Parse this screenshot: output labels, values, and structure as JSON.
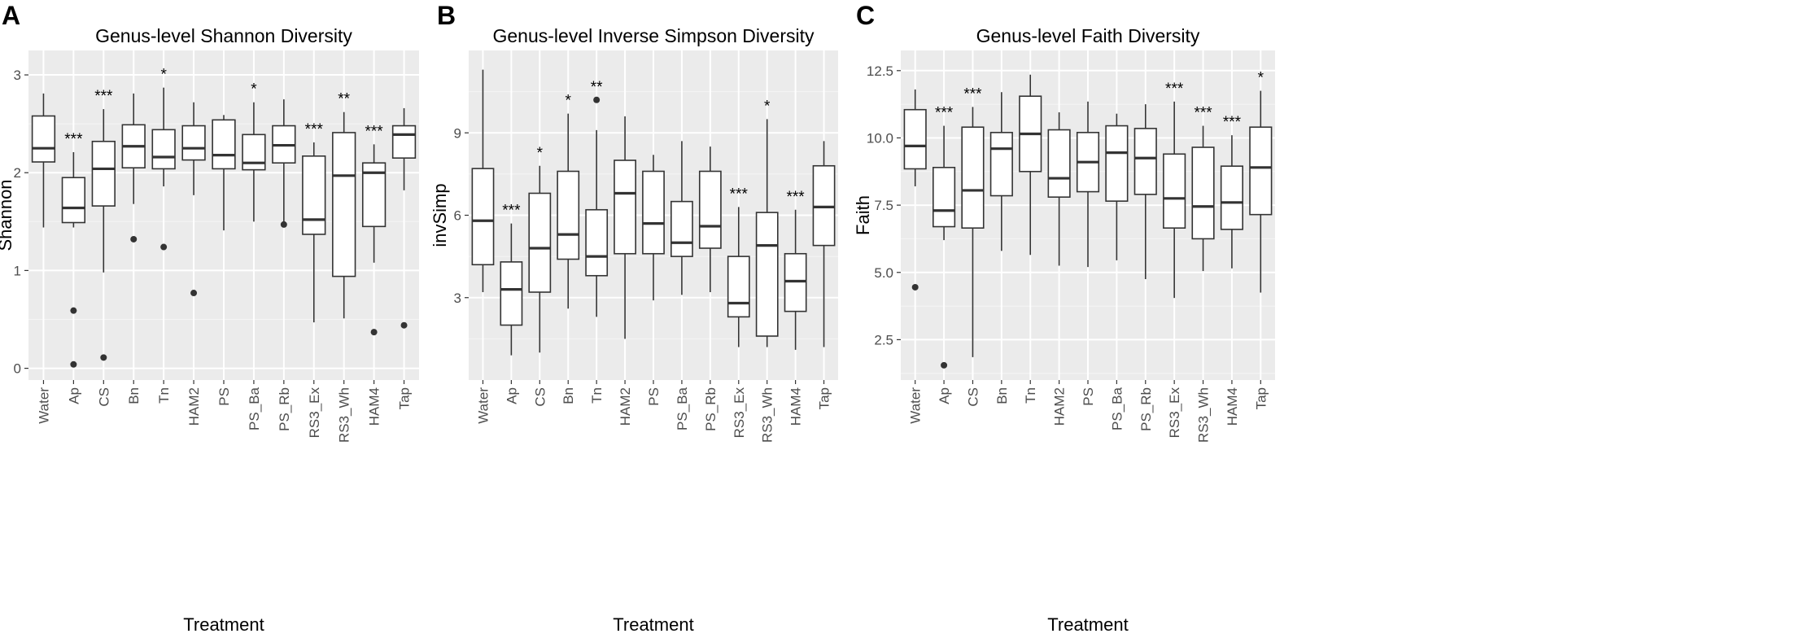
{
  "chart_data": [
    {
      "type": "boxplot",
      "panel_label": "A",
      "title": "Genus-level Shannon Diversity",
      "xlabel": "Treatment",
      "ylabel": "Shannon",
      "ylim": [
        -0.12,
        3.25
      ],
      "yticks": [
        0,
        1,
        2,
        3
      ],
      "ytick_labels": [
        "0",
        "1",
        "2",
        "3"
      ],
      "grid": true,
      "categories": [
        "Water",
        "Ap",
        "CS",
        "Bn",
        "Tn",
        "HAM2",
        "PS",
        "PS_Ba",
        "PS_Rb",
        "RS3_Ex",
        "RS3_Wh",
        "HAM4",
        "Tap"
      ],
      "boxes": [
        {
          "min": 1.44,
          "q1": 2.11,
          "median": 2.25,
          "q3": 2.58,
          "max": 2.81,
          "outliers": [],
          "sig": ""
        },
        {
          "min": 1.44,
          "q1": 1.49,
          "median": 1.64,
          "q3": 1.95,
          "max": 2.21,
          "outliers": [
            0.59,
            0.04
          ],
          "sig": "***"
        },
        {
          "min": 0.98,
          "q1": 1.66,
          "median": 2.04,
          "q3": 2.32,
          "max": 2.65,
          "outliers": [
            0.11
          ],
          "sig": "***"
        },
        {
          "min": 1.68,
          "q1": 2.05,
          "median": 2.27,
          "q3": 2.49,
          "max": 2.81,
          "outliers": [
            1.32
          ],
          "sig": ""
        },
        {
          "min": 1.86,
          "q1": 2.04,
          "median": 2.16,
          "q3": 2.44,
          "max": 2.87,
          "outliers": [
            1.24
          ],
          "sig": "*"
        },
        {
          "min": 1.77,
          "q1": 2.13,
          "median": 2.25,
          "q3": 2.48,
          "max": 2.72,
          "outliers": [
            0.77
          ],
          "sig": ""
        },
        {
          "min": 1.41,
          "q1": 2.04,
          "median": 2.18,
          "q3": 2.54,
          "max": 2.59,
          "outliers": [],
          "sig": ""
        },
        {
          "min": 1.5,
          "q1": 2.03,
          "median": 2.1,
          "q3": 2.39,
          "max": 2.72,
          "outliers": [],
          "sig": "*"
        },
        {
          "min": 1.48,
          "q1": 2.1,
          "median": 2.28,
          "q3": 2.48,
          "max": 2.75,
          "outliers": [
            1.47
          ],
          "sig": ""
        },
        {
          "min": 0.47,
          "q1": 1.37,
          "median": 1.52,
          "q3": 2.17,
          "max": 2.31,
          "outliers": [],
          "sig": "***"
        },
        {
          "min": 0.51,
          "q1": 0.94,
          "median": 1.97,
          "q3": 2.41,
          "max": 2.62,
          "outliers": [],
          "sig": "**"
        },
        {
          "min": 1.08,
          "q1": 1.45,
          "median": 2.0,
          "q3": 2.1,
          "max": 2.29,
          "outliers": [
            0.37
          ],
          "sig": "***"
        },
        {
          "min": 1.82,
          "q1": 2.15,
          "median": 2.39,
          "q3": 2.48,
          "max": 2.66,
          "outliers": [
            0.44
          ],
          "sig": ""
        }
      ]
    },
    {
      "type": "boxplot",
      "panel_label": "B",
      "title": "Genus-level Inverse Simpson Diversity",
      "xlabel": "Treatment",
      "ylabel": "invSimp",
      "ylim": [
        0.0,
        12.0
      ],
      "yticks": [
        3,
        6,
        9
      ],
      "ytick_labels": [
        "3",
        "6",
        "9"
      ],
      "grid": true,
      "categories": [
        "Water",
        "Ap",
        "CS",
        "Bn",
        "Tn",
        "HAM2",
        "PS",
        "PS_Ba",
        "PS_Rb",
        "RS3_Ex",
        "RS3_Wh",
        "HAM4",
        "Tap"
      ],
      "boxes": [
        {
          "min": 3.2,
          "q1": 4.2,
          "median": 5.8,
          "q3": 7.7,
          "max": 11.3,
          "outliers": [],
          "sig": ""
        },
        {
          "min": 0.9,
          "q1": 2.0,
          "median": 3.3,
          "q3": 4.3,
          "max": 5.7,
          "outliers": [],
          "sig": "***"
        },
        {
          "min": 1.0,
          "q1": 3.2,
          "median": 4.8,
          "q3": 6.8,
          "max": 7.8,
          "outliers": [],
          "sig": "*"
        },
        {
          "min": 2.6,
          "q1": 4.4,
          "median": 5.3,
          "q3": 7.6,
          "max": 9.7,
          "outliers": [],
          "sig": "*"
        },
        {
          "min": 2.3,
          "q1": 3.8,
          "median": 4.5,
          "q3": 6.2,
          "max": 9.1,
          "outliers": [
            10.2
          ],
          "sig": "**"
        },
        {
          "min": 1.5,
          "q1": 4.6,
          "median": 6.8,
          "q3": 8.0,
          "max": 9.6,
          "outliers": [],
          "sig": ""
        },
        {
          "min": 2.9,
          "q1": 4.6,
          "median": 5.7,
          "q3": 7.6,
          "max": 8.2,
          "outliers": [],
          "sig": ""
        },
        {
          "min": 3.1,
          "q1": 4.5,
          "median": 5.0,
          "q3": 6.5,
          "max": 8.7,
          "outliers": [],
          "sig": ""
        },
        {
          "min": 3.2,
          "q1": 4.8,
          "median": 5.6,
          "q3": 7.6,
          "max": 8.5,
          "outliers": [],
          "sig": ""
        },
        {
          "min": 1.2,
          "q1": 2.3,
          "median": 2.8,
          "q3": 4.5,
          "max": 6.3,
          "outliers": [],
          "sig": "***"
        },
        {
          "min": 1.2,
          "q1": 1.6,
          "median": 4.9,
          "q3": 6.1,
          "max": 9.5,
          "outliers": [],
          "sig": "*"
        },
        {
          "min": 1.1,
          "q1": 2.5,
          "median": 3.6,
          "q3": 4.6,
          "max": 6.2,
          "outliers": [],
          "sig": "***"
        },
        {
          "min": 1.2,
          "q1": 4.9,
          "median": 6.3,
          "q3": 7.8,
          "max": 8.7,
          "outliers": [],
          "sig": ""
        }
      ]
    },
    {
      "type": "boxplot",
      "panel_label": "C",
      "title": "Genus-level Faith Diversity",
      "xlabel": "Treatment",
      "ylabel": "Faith",
      "ylim": [
        1.0,
        13.25
      ],
      "yticks": [
        2.5,
        5.0,
        7.5,
        10.0,
        12.5
      ],
      "ytick_labels": [
        "2.5",
        "5.0",
        "7.5",
        "10.0",
        "12.5"
      ],
      "grid": true,
      "categories": [
        "Water",
        "Ap",
        "CS",
        "Bn",
        "Tn",
        "HAM2",
        "PS",
        "PS_Ba",
        "PS_Rb",
        "RS3_Ex",
        "RS3_Wh",
        "HAM4",
        "Tap"
      ],
      "boxes": [
        {
          "min": 8.2,
          "q1": 8.85,
          "median": 9.7,
          "q3": 11.05,
          "max": 11.8,
          "outliers": [
            4.45
          ],
          "sig": ""
        },
        {
          "min": 6.2,
          "q1": 6.7,
          "median": 7.3,
          "q3": 8.9,
          "max": 10.45,
          "outliers": [
            1.55
          ],
          "sig": "***"
        },
        {
          "min": 1.85,
          "q1": 6.65,
          "median": 8.05,
          "q3": 10.4,
          "max": 11.15,
          "outliers": [],
          "sig": "***"
        },
        {
          "min": 5.8,
          "q1": 7.85,
          "median": 9.6,
          "q3": 10.2,
          "max": 11.7,
          "outliers": [],
          "sig": ""
        },
        {
          "min": 5.65,
          "q1": 8.75,
          "median": 10.15,
          "q3": 11.55,
          "max": 12.35,
          "outliers": [],
          "sig": ""
        },
        {
          "min": 5.25,
          "q1": 7.8,
          "median": 8.5,
          "q3": 10.3,
          "max": 10.95,
          "outliers": [],
          "sig": ""
        },
        {
          "min": 5.2,
          "q1": 8.0,
          "median": 9.1,
          "q3": 10.2,
          "max": 11.35,
          "outliers": [],
          "sig": ""
        },
        {
          "min": 5.45,
          "q1": 7.65,
          "median": 9.45,
          "q3": 10.45,
          "max": 10.9,
          "outliers": [],
          "sig": ""
        },
        {
          "min": 4.75,
          "q1": 7.9,
          "median": 9.25,
          "q3": 10.35,
          "max": 11.25,
          "outliers": [],
          "sig": ""
        },
        {
          "min": 4.05,
          "q1": 6.65,
          "median": 7.75,
          "q3": 9.4,
          "max": 11.35,
          "outliers": [],
          "sig": "***"
        },
        {
          "min": 5.05,
          "q1": 6.25,
          "median": 7.45,
          "q3": 9.65,
          "max": 10.45,
          "outliers": [],
          "sig": "***"
        },
        {
          "min": 5.15,
          "q1": 6.6,
          "median": 7.6,
          "q3": 8.95,
          "max": 10.1,
          "outliers": [],
          "sig": "***"
        },
        {
          "min": 4.25,
          "q1": 7.15,
          "median": 8.9,
          "q3": 10.4,
          "max": 11.75,
          "outliers": [],
          "sig": "*"
        }
      ]
    }
  ]
}
